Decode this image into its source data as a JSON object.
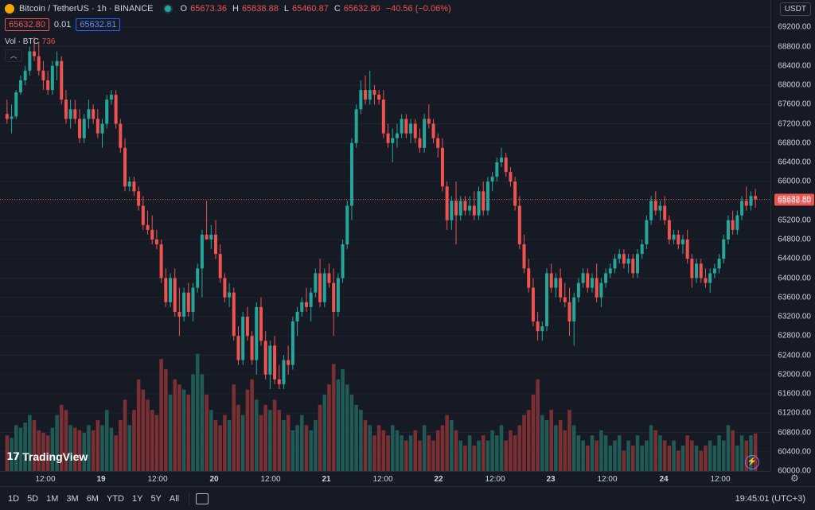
{
  "header": {
    "symbol": "Bitcoin / TetherUS · 1h · BINANCE",
    "open_label": "O",
    "open": "65673.36",
    "high_label": "H",
    "high": "65838.88",
    "low_label": "L",
    "low": "65460.87",
    "close_label": "C",
    "close": "65632.80",
    "change": "−40.56 (−0.06%)",
    "sell_price": "65632.80",
    "spread": "0.01",
    "buy_price": "65632.81",
    "volume_label": "Vol · BTC",
    "volume_value": "736",
    "collapse_icon": "chevron-up-icon"
  },
  "currency": "USDT",
  "last_price_label": "65632.80",
  "colors": {
    "up": "#26a69a",
    "down": "#ef5350",
    "background": "#161a25"
  },
  "y_ticks": [
    "69200.00",
    "68800.00",
    "68400.00",
    "68000.00",
    "67600.00",
    "67200.00",
    "66800.00",
    "66400.00",
    "66000.00",
    "65600.00",
    "65200.00",
    "64800.00",
    "64400.00",
    "64000.00",
    "63600.00",
    "63200.00",
    "62800.00",
    "62400.00",
    "62000.00",
    "61600.00",
    "61200.00",
    "60800.00",
    "60400.00",
    "60000.00"
  ],
  "x_ticks": [
    {
      "label": "12:00",
      "day": false
    },
    {
      "label": "19",
      "day": true
    },
    {
      "label": "12:00",
      "day": false
    },
    {
      "label": "20",
      "day": true
    },
    {
      "label": "12:00",
      "day": false
    },
    {
      "label": "21",
      "day": true
    },
    {
      "label": "12:00",
      "day": false
    },
    {
      "label": "22",
      "day": true
    },
    {
      "label": "12:00",
      "day": false
    },
    {
      "label": "23",
      "day": true
    },
    {
      "label": "12:00",
      "day": false
    },
    {
      "label": "24",
      "day": true
    },
    {
      "label": "12:00",
      "day": false
    }
  ],
  "time_ranges": [
    "1D",
    "5D",
    "1M",
    "3M",
    "6M",
    "YTD",
    "1Y",
    "5Y",
    "All"
  ],
  "clock": "19:45:01 (UTC+3)",
  "brand": "TradingView",
  "chart_data": {
    "type": "candlestick",
    "title": "Bitcoin / TetherUS · 1h · BINANCE",
    "ylim": [
      60000,
      69600
    ],
    "volume_max": 2500,
    "ohlcv": [
      [
        67400,
        67700,
        67200,
        67300,
        700
      ],
      [
        67300,
        67600,
        67000,
        67350,
        650
      ],
      [
        67350,
        67900,
        67300,
        67850,
        900
      ],
      [
        67850,
        68200,
        67800,
        68100,
        850
      ],
      [
        68100,
        68400,
        68000,
        68300,
        950
      ],
      [
        68300,
        68800,
        68200,
        68700,
        1100
      ],
      [
        68700,
        69000,
        68500,
        68600,
        1000
      ],
      [
        68600,
        68900,
        68200,
        68300,
        800
      ],
      [
        68300,
        68500,
        67900,
        68100,
        750
      ],
      [
        68100,
        68300,
        67800,
        67900,
        700
      ],
      [
        67900,
        68500,
        67800,
        68400,
        850
      ],
      [
        68400,
        68700,
        68100,
        68500,
        1100
      ],
      [
        68500,
        68600,
        67600,
        67700,
        1300
      ],
      [
        67700,
        67900,
        67200,
        67300,
        1200
      ],
      [
        67300,
        67700,
        67100,
        67500,
        900
      ],
      [
        67500,
        67700,
        67200,
        67300,
        850
      ],
      [
        67300,
        67500,
        66800,
        66900,
        800
      ],
      [
        66900,
        67400,
        66800,
        67300,
        750
      ],
      [
        67300,
        67700,
        67100,
        67500,
        900
      ],
      [
        67500,
        67600,
        67200,
        67300,
        800
      ],
      [
        67300,
        67500,
        66900,
        67000,
        1000
      ],
      [
        67000,
        67300,
        66700,
        67200,
        900
      ],
      [
        67200,
        67800,
        67100,
        67700,
        1200
      ],
      [
        67700,
        67900,
        67600,
        67800,
        850
      ],
      [
        67800,
        67900,
        67100,
        67200,
        700
      ],
      [
        67200,
        67300,
        66600,
        66700,
        1000
      ],
      [
        66700,
        66900,
        65800,
        65900,
        1400
      ],
      [
        65900,
        66100,
        65800,
        66000,
        900
      ],
      [
        66000,
        66100,
        65700,
        65800,
        1200
      ],
      [
        65800,
        65900,
        65400,
        65500,
        1800
      ],
      [
        65500,
        65700,
        65000,
        65100,
        1600
      ],
      [
        65100,
        65400,
        64900,
        65000,
        1400
      ],
      [
        65000,
        65300,
        64700,
        64800,
        1200
      ],
      [
        64800,
        65000,
        64600,
        64700,
        1100
      ],
      [
        64700,
        64800,
        63900,
        64000,
        2200
      ],
      [
        64000,
        64200,
        63400,
        63500,
        2000
      ],
      [
        63500,
        64100,
        63400,
        64000,
        1500
      ],
      [
        64000,
        64200,
        63200,
        63300,
        1800
      ],
      [
        63300,
        63800,
        62800,
        63200,
        1700
      ],
      [
        63200,
        63800,
        63100,
        63700,
        1600
      ],
      [
        63700,
        63900,
        63200,
        63300,
        1500
      ],
      [
        63300,
        63900,
        63100,
        63800,
        1900
      ],
      [
        63800,
        64300,
        63700,
        64200,
        2300
      ],
      [
        64200,
        65000,
        63600,
        64900,
        1900
      ],
      [
        64900,
        65600,
        64800,
        64800,
        1500
      ],
      [
        64800,
        65100,
        64600,
        64900,
        1200
      ],
      [
        64900,
        65200,
        64400,
        64500,
        1000
      ],
      [
        64500,
        64700,
        63900,
        64000,
        900
      ],
      [
        64000,
        64100,
        63500,
        63600,
        1100
      ],
      [
        63600,
        63900,
        63400,
        63700,
        1000
      ],
      [
        63700,
        63800,
        62700,
        62800,
        1700
      ],
      [
        62800,
        63000,
        62200,
        62300,
        1300
      ],
      [
        62300,
        63300,
        62200,
        63200,
        1100
      ],
      [
        63200,
        63400,
        62700,
        62800,
        1600
      ],
      [
        62800,
        62900,
        62200,
        62300,
        1800
      ],
      [
        62300,
        63500,
        62000,
        63400,
        1400
      ],
      [
        63400,
        63600,
        62600,
        62700,
        1100
      ],
      [
        62700,
        62900,
        61900,
        62000,
        1300
      ],
      [
        62000,
        62700,
        61700,
        62600,
        1200
      ],
      [
        62600,
        62800,
        61800,
        61900,
        1400
      ],
      [
        61900,
        62200,
        61700,
        61800,
        1200
      ],
      [
        61800,
        62400,
        61700,
        62300,
        1000
      ],
      [
        62300,
        62600,
        62000,
        62200,
        1100
      ],
      [
        62200,
        63200,
        62100,
        63100,
        800
      ],
      [
        63100,
        63400,
        62800,
        63300,
        900
      ],
      [
        63300,
        63600,
        63200,
        63500,
        1100
      ],
      [
        63500,
        63800,
        63300,
        63400,
        900
      ],
      [
        63400,
        63800,
        63100,
        63700,
        800
      ],
      [
        63700,
        64200,
        63600,
        64100,
        1000
      ],
      [
        64100,
        64400,
        63400,
        63500,
        1300
      ],
      [
        63500,
        64200,
        63400,
        64100,
        1500
      ],
      [
        64100,
        64300,
        63800,
        63900,
        1700
      ],
      [
        63900,
        64200,
        62800,
        63300,
        2100
      ],
      [
        63300,
        64100,
        63200,
        64000,
        1800
      ],
      [
        64000,
        64800,
        63900,
        64700,
        2000
      ],
      [
        64700,
        65600,
        64600,
        65500,
        1700
      ],
      [
        65500,
        66900,
        65200,
        66800,
        1500
      ],
      [
        66800,
        67600,
        66700,
        67500,
        1300
      ],
      [
        67500,
        68100,
        67400,
        67900,
        1200
      ],
      [
        67900,
        68200,
        67600,
        67700,
        1000
      ],
      [
        67700,
        68300,
        67600,
        67900,
        900
      ],
      [
        67900,
        68000,
        67600,
        67800,
        700
      ],
      [
        67800,
        67900,
        67600,
        67700,
        900
      ],
      [
        67700,
        67900,
        66900,
        67000,
        800
      ],
      [
        67000,
        67200,
        66700,
        66800,
        700
      ],
      [
        66800,
        67100,
        66400,
        66900,
        900
      ],
      [
        66900,
        67200,
        66700,
        67000,
        800
      ],
      [
        67000,
        67400,
        66900,
        67300,
        700
      ],
      [
        67300,
        67400,
        66900,
        67000,
        600
      ],
      [
        67000,
        67300,
        66800,
        67200,
        700
      ],
      [
        67200,
        67300,
        66800,
        66900,
        800
      ],
      [
        66900,
        67100,
        66600,
        66700,
        600
      ],
      [
        66700,
        67400,
        66600,
        67300,
        900
      ],
      [
        67300,
        67600,
        67100,
        67200,
        700
      ],
      [
        67200,
        67300,
        66800,
        66900,
        600
      ],
      [
        66900,
        67000,
        66500,
        66700,
        800
      ],
      [
        66700,
        66900,
        65800,
        65900,
        900
      ],
      [
        65900,
        66000,
        65000,
        65200,
        1100
      ],
      [
        65200,
        65700,
        65000,
        65600,
        1000
      ],
      [
        65600,
        66000,
        64700,
        65300,
        800
      ],
      [
        65300,
        65700,
        65200,
        65600,
        600
      ],
      [
        65600,
        65700,
        65300,
        65400,
        500
      ],
      [
        65400,
        65700,
        65300,
        65500,
        700
      ],
      [
        65500,
        65800,
        65200,
        65300,
        500
      ],
      [
        65300,
        65900,
        65200,
        65800,
        600
      ],
      [
        65800,
        66000,
        65300,
        65400,
        700
      ],
      [
        65400,
        66100,
        65300,
        66000,
        600
      ],
      [
        66000,
        66200,
        65800,
        66100,
        800
      ],
      [
        66100,
        66500,
        66000,
        66400,
        700
      ],
      [
        66400,
        66700,
        66300,
        66500,
        900
      ],
      [
        66500,
        66600,
        66100,
        66200,
        600
      ],
      [
        66200,
        66300,
        65900,
        66000,
        800
      ],
      [
        66000,
        66100,
        65400,
        65500,
        700
      ],
      [
        65500,
        65700,
        64600,
        64700,
        900
      ],
      [
        64700,
        64900,
        64100,
        64200,
        1100
      ],
      [
        64200,
        64400,
        63700,
        63800,
        1200
      ],
      [
        63800,
        64000,
        63000,
        63100,
        1500
      ],
      [
        63100,
        63300,
        62700,
        62900,
        1800
      ],
      [
        62900,
        63100,
        62700,
        63000,
        1100
      ],
      [
        63000,
        64200,
        62900,
        64100,
        1000
      ],
      [
        64100,
        64300,
        63700,
        63800,
        1200
      ],
      [
        63800,
        64100,
        63600,
        64000,
        900
      ],
      [
        64000,
        64200,
        63500,
        63600,
        1000
      ],
      [
        63600,
        63900,
        63400,
        63500,
        800
      ],
      [
        63500,
        63800,
        62800,
        63100,
        1200
      ],
      [
        63100,
        63700,
        62600,
        63600,
        900
      ],
      [
        63600,
        64000,
        63500,
        63900,
        700
      ],
      [
        63900,
        64200,
        63800,
        64100,
        600
      ],
      [
        64100,
        64200,
        63700,
        63800,
        500
      ],
      [
        63800,
        64100,
        63700,
        64000,
        700
      ],
      [
        64000,
        64300,
        63500,
        63600,
        600
      ],
      [
        63600,
        64000,
        63400,
        63900,
        800
      ],
      [
        63900,
        64200,
        63800,
        64100,
        700
      ],
      [
        64100,
        64300,
        64000,
        64200,
        500
      ],
      [
        64200,
        64500,
        64100,
        64400,
        600
      ],
      [
        64400,
        64600,
        64300,
        64500,
        700
      ],
      [
        64500,
        64600,
        64200,
        64300,
        400
      ],
      [
        64300,
        64500,
        64100,
        64400,
        600
      ],
      [
        64400,
        64500,
        64000,
        64100,
        500
      ],
      [
        64100,
        64600,
        64000,
        64500,
        700
      ],
      [
        64500,
        64800,
        64400,
        64700,
        500
      ],
      [
        64700,
        65300,
        64600,
        65200,
        600
      ],
      [
        65200,
        65700,
        65100,
        65600,
        900
      ],
      [
        65600,
        65800,
        65300,
        65400,
        800
      ],
      [
        65400,
        65600,
        65200,
        65500,
        700
      ],
      [
        65500,
        65700,
        65100,
        65200,
        600
      ],
      [
        65200,
        65300,
        64700,
        64800,
        500
      ],
      [
        64800,
        65000,
        64700,
        64900,
        600
      ],
      [
        64900,
        65000,
        64600,
        64700,
        400
      ],
      [
        64700,
        64900,
        64500,
        64800,
        500
      ],
      [
        64800,
        65000,
        64300,
        64400,
        700
      ],
      [
        64400,
        64500,
        63800,
        64000,
        600
      ],
      [
        64000,
        64400,
        63900,
        64300,
        500
      ],
      [
        64300,
        64400,
        63900,
        64000,
        400
      ],
      [
        64000,
        64200,
        63800,
        63900,
        500
      ],
      [
        63900,
        64200,
        63700,
        64100,
        600
      ],
      [
        64100,
        64300,
        64000,
        64200,
        500
      ],
      [
        64200,
        64500,
        64100,
        64400,
        700
      ],
      [
        64400,
        64900,
        64300,
        64800,
        600
      ],
      [
        64800,
        65300,
        64700,
        65200,
        900
      ],
      [
        65200,
        65400,
        64900,
        65000,
        800
      ],
      [
        65000,
        65400,
        64900,
        65300,
        500
      ],
      [
        65300,
        65700,
        65200,
        65600,
        700
      ],
      [
        65600,
        65900,
        65400,
        65500,
        600
      ],
      [
        65500,
        65800,
        65400,
        65700,
        700
      ],
      [
        65700,
        65850,
        65460,
        65632,
        736
      ]
    ]
  }
}
